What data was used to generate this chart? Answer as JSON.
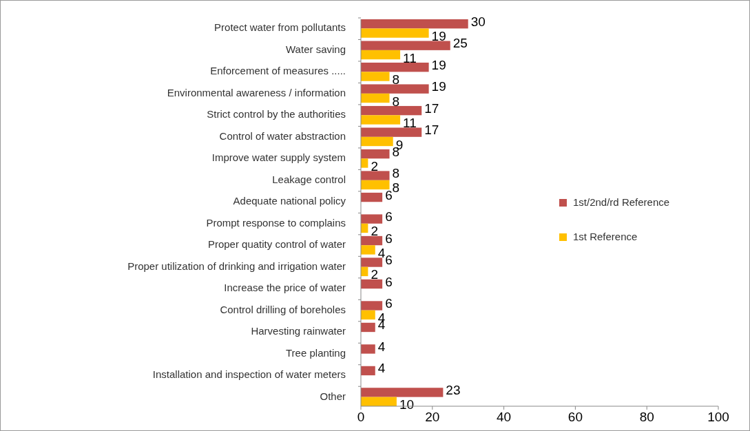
{
  "chart_data": {
    "type": "bar",
    "orientation": "horizontal",
    "categories": [
      "Protect water from pollutants",
      "Water saving",
      "Enforcement of measures .....",
      "Environmental awareness / information",
      "Strict control by the authorities",
      "Control of water abstraction",
      "Improve water supply system",
      "Leakage control",
      "Adequate national policy",
      "Prompt response to complains",
      "Proper quatity control of water",
      "Proper utilization of drinking and irrigation water",
      "Increase the price of water",
      "Control drilling of boreholes",
      "Harvesting rainwater",
      "Tree planting",
      "Installation and inspection of water meters",
      "Other"
    ],
    "series": [
      {
        "name": "1st/2nd/rd Reference",
        "color": "#c0504d",
        "values": [
          30,
          25,
          19,
          19,
          17,
          17,
          8,
          8,
          6,
          6,
          6,
          6,
          6,
          6,
          4,
          4,
          4,
          23
        ]
      },
      {
        "name": "1st Reference",
        "color": "#ffc000",
        "values": [
          19,
          11,
          8,
          8,
          11,
          9,
          2,
          8,
          null,
          2,
          4,
          2,
          null,
          4,
          null,
          null,
          null,
          10
        ]
      }
    ],
    "xlim": [
      0,
      100
    ],
    "xticks": [
      0,
      20,
      40,
      60,
      80,
      100
    ],
    "data_labels": true,
    "legend": "right",
    "grid": false
  }
}
